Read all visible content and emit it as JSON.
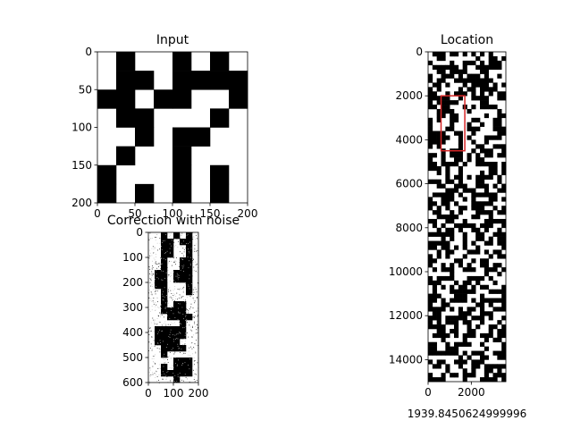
{
  "chart_data": [
    {
      "type": "heatmap",
      "title": "Input",
      "xlabel": "",
      "ylabel": "",
      "xlim": [
        0,
        200
      ],
      "ylim": [
        200,
        0
      ],
      "x_ticks": [
        "0",
        "50",
        "100",
        "150",
        "200"
      ],
      "y_ticks": [
        "0",
        "50",
        "100",
        "150",
        "200"
      ],
      "colormap": [
        "#000000",
        "#ffffff"
      ],
      "cell_size": 25,
      "grid_cols": 8,
      "grid_rows": 8,
      "cells": [
        [
          1,
          0,
          1,
          1,
          0,
          1,
          0,
          1
        ],
        [
          1,
          0,
          0,
          1,
          0,
          0,
          0,
          0
        ],
        [
          0,
          0,
          1,
          0,
          0,
          1,
          1,
          0
        ],
        [
          1,
          0,
          0,
          1,
          1,
          1,
          0,
          1
        ],
        [
          1,
          1,
          0,
          1,
          0,
          0,
          1,
          1
        ],
        [
          1,
          0,
          1,
          1,
          0,
          1,
          1,
          1
        ],
        [
          0,
          1,
          1,
          1,
          0,
          1,
          0,
          1
        ],
        [
          0,
          1,
          0,
          1,
          0,
          1,
          0,
          1
        ]
      ]
    },
    {
      "type": "heatmap",
      "title": "Correction with noise",
      "xlabel": "",
      "ylabel": "",
      "xlim": [
        0,
        200
      ],
      "ylim": [
        600,
        0
      ],
      "x_ticks": [
        "0",
        "100",
        "200"
      ],
      "y_ticks": [
        "0",
        "100",
        "200",
        "300",
        "400",
        "500",
        "600"
      ],
      "colormap": [
        "#000000",
        "#ffffff"
      ],
      "noise": "salt-and-pepper",
      "cell_size": 25,
      "grid_cols": 8,
      "grid_rows": 24,
      "cells": [
        [
          1,
          1,
          0,
          1,
          0,
          1,
          0,
          1
        ],
        [
          1,
          1,
          0,
          0,
          1,
          0,
          0,
          1
        ],
        [
          1,
          1,
          0,
          0,
          1,
          1,
          0,
          1
        ],
        [
          1,
          1,
          0,
          0,
          1,
          1,
          0,
          1
        ],
        [
          1,
          1,
          0,
          1,
          1,
          0,
          0,
          1
        ],
        [
          1,
          1,
          0,
          1,
          1,
          0,
          0,
          1
        ],
        [
          1,
          0,
          0,
          1,
          0,
          0,
          0,
          1
        ],
        [
          1,
          0,
          0,
          1,
          0,
          0,
          0,
          1
        ],
        [
          1,
          0,
          0,
          1,
          1,
          1,
          0,
          1
        ],
        [
          1,
          1,
          0,
          1,
          1,
          1,
          0,
          1
        ],
        [
          1,
          1,
          0,
          1,
          1,
          1,
          1,
          1
        ],
        [
          1,
          1,
          0,
          1,
          0,
          0,
          1,
          1
        ],
        [
          1,
          1,
          0,
          0,
          0,
          0,
          1,
          1
        ],
        [
          1,
          1,
          1,
          0,
          0,
          0,
          0,
          1
        ],
        [
          1,
          1,
          1,
          1,
          1,
          0,
          1,
          1
        ],
        [
          1,
          0,
          0,
          0,
          0,
          0,
          1,
          1
        ],
        [
          1,
          0,
          0,
          0,
          0,
          0,
          1,
          1
        ],
        [
          1,
          0,
          0,
          0,
          0,
          1,
          1,
          1
        ],
        [
          1,
          1,
          0,
          0,
          0,
          0,
          1,
          1
        ],
        [
          1,
          1,
          0,
          1,
          1,
          1,
          1,
          1
        ],
        [
          1,
          1,
          1,
          1,
          0,
          0,
          0,
          1
        ],
        [
          1,
          1,
          0,
          1,
          0,
          0,
          0,
          1
        ],
        [
          1,
          1,
          0,
          0,
          0,
          0,
          0,
          1
        ],
        [
          1,
          1,
          1,
          1,
          0,
          1,
          1,
          1
        ]
      ]
    },
    {
      "type": "heatmap",
      "title": "Location",
      "xlabel": "1939.8450624999996",
      "ylabel": "",
      "xlim": [
        0,
        3600
      ],
      "ylim": [
        15000,
        0
      ],
      "x_ticks": [
        {
          "value": 0,
          "label": "0"
        },
        {
          "value": 2000,
          "label": "2000"
        }
      ],
      "y_ticks": [
        {
          "value": 0,
          "label": "0"
        },
        {
          "value": 2000,
          "label": "2000"
        },
        {
          "value": 4000,
          "label": "4000"
        },
        {
          "value": 6000,
          "label": "6000"
        },
        {
          "value": 8000,
          "label": "8000"
        },
        {
          "value": 10000,
          "label": "10000"
        },
        {
          "value": 12000,
          "label": "12000"
        },
        {
          "value": 14000,
          "label": "14000"
        }
      ],
      "colormap": [
        "#000000",
        "#ffffff"
      ],
      "grid_cols": 18,
      "grid_rows": 75,
      "pattern": "random binary checkerboard",
      "highlight_box": {
        "color": "#d62728",
        "x_range": [
          600,
          1700
        ],
        "y_range": [
          2000,
          4500
        ]
      }
    }
  ]
}
